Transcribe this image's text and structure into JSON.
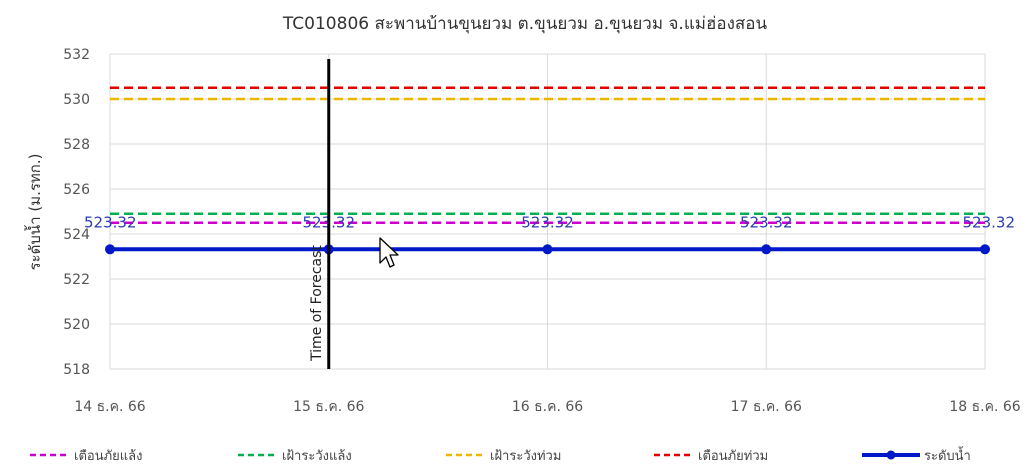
{
  "chart_data": {
    "type": "line",
    "title": "TC010806 สะพานบ้านขุนยวม ต.ขุนยวม อ.ขุนยวม จ.แม่ฮ่องสอน",
    "ylabel": "ระดับน้ำ (ม.รทก.)",
    "xlabel": "",
    "categories": [
      "14 ธ.ค. 66",
      "15 ธ.ค. 66",
      "16 ธ.ค. 66",
      "17 ธ.ค. 66",
      "18 ธ.ค. 66"
    ],
    "ylim": [
      518,
      532
    ],
    "yticks": [
      518,
      520,
      522,
      524,
      526,
      528,
      530,
      532
    ],
    "grid": true,
    "legend_position": "bottom",
    "forecast_marker": {
      "x_index": 1,
      "label": "Time of Forecast",
      "color": "#000000"
    },
    "series": [
      {
        "name": "เตือนภัยแล้ง",
        "values": [
          524.5,
          524.5,
          524.5,
          524.5,
          524.5
        ],
        "color": "#cc00cc",
        "style": "dashed",
        "markers": false
      },
      {
        "name": "เฝ้าระวังแล้ง",
        "values": [
          524.9,
          524.9,
          524.9,
          524.9,
          524.9
        ],
        "color": "#00b050",
        "style": "dashed",
        "markers": false
      },
      {
        "name": "เฝ้าระวังท่วม",
        "values": [
          530.0,
          530.0,
          530.0,
          530.0,
          530.0
        ],
        "color": "#e8b800",
        "style": "dashed",
        "markers": false
      },
      {
        "name": "เตือนภัยท่วม",
        "values": [
          530.5,
          530.5,
          530.5,
          530.5,
          530.5
        ],
        "color": "#e00000",
        "style": "dashed",
        "markers": false
      },
      {
        "name": "ระดับน้ำ",
        "values": [
          523.32,
          523.32,
          523.32,
          523.32,
          523.32
        ],
        "color": "#0019c8",
        "style": "solid",
        "markers": true,
        "data_labels": [
          "523.32",
          "523.32",
          "523.32",
          "523.32",
          "523.32"
        ]
      }
    ]
  }
}
